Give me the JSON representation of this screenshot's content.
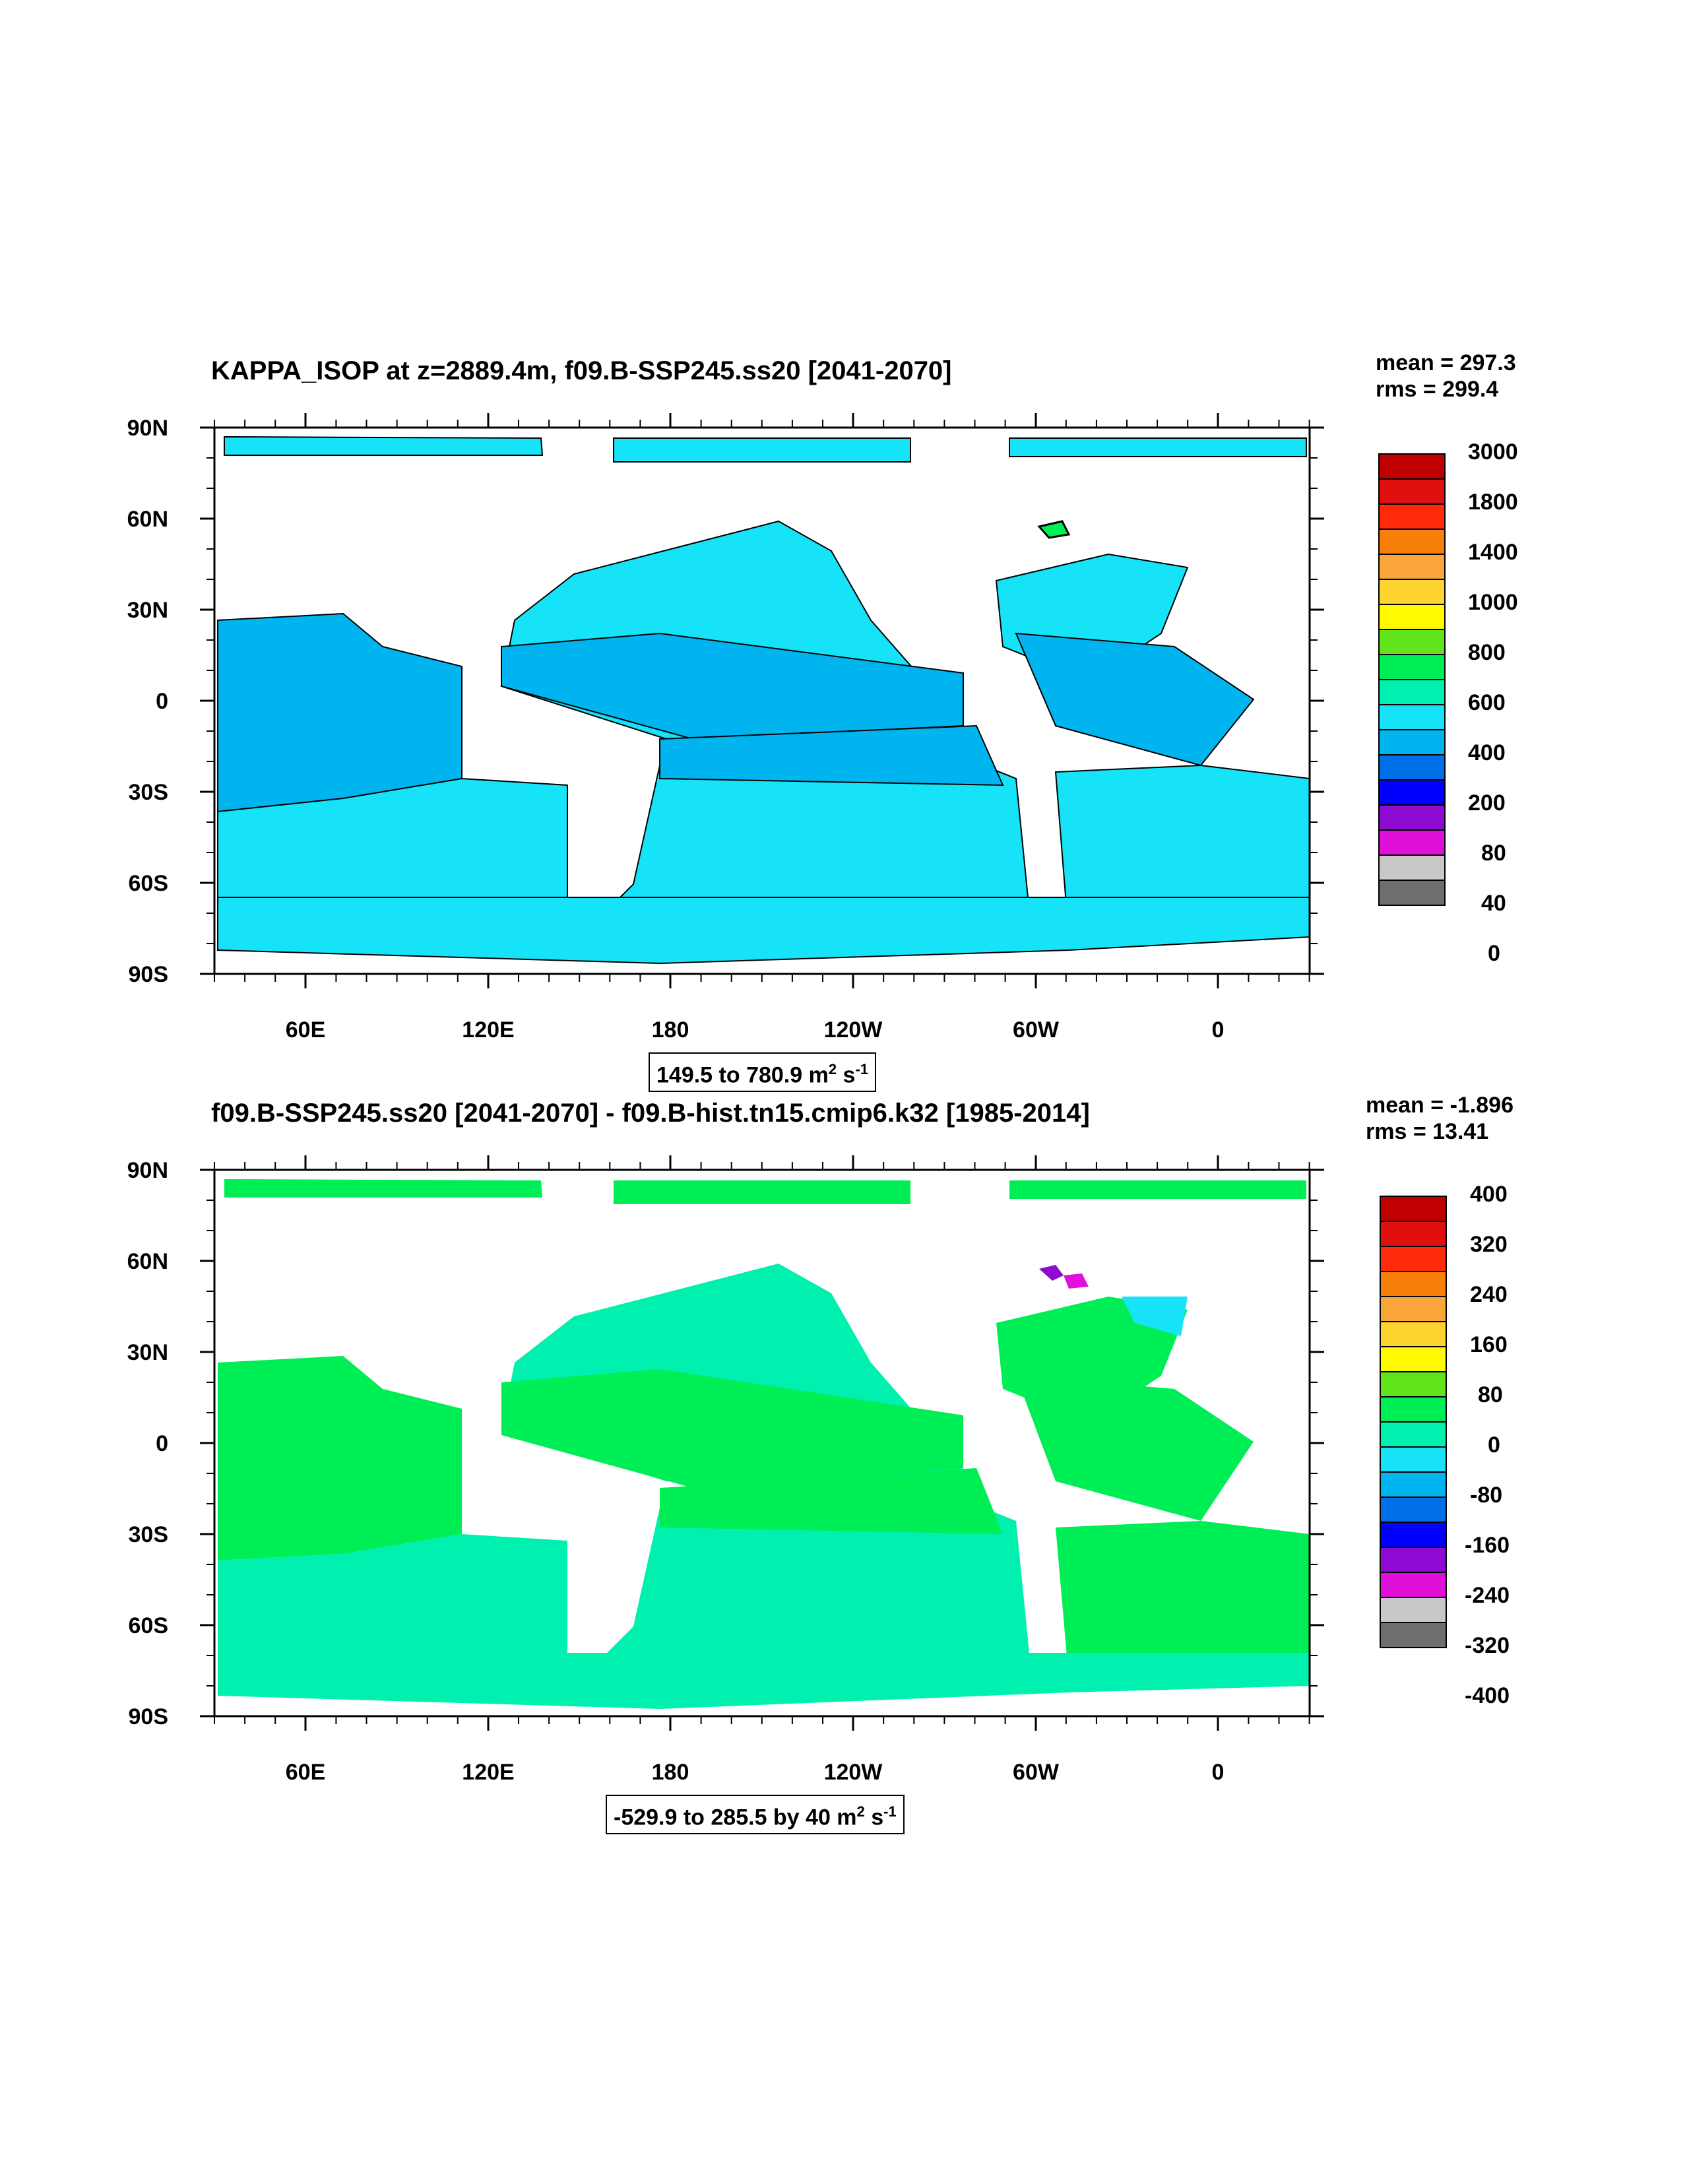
{
  "panels": [
    {
      "title": "KAPPA_ISOP at z=2889.4m, f09.B-SSP245.ss20 [2041-2070]",
      "stats": {
        "mean": "mean = 297.3",
        "rms": "rms = 299.4"
      },
      "range_text": "149.5 to 780.9 m",
      "range_sup1": "2",
      "range_mid": " s",
      "range_sup2": "-1",
      "colorbar_labels": [
        "3000",
        "1800",
        "1400",
        "1000",
        "800",
        "600",
        "400",
        "200",
        "80",
        "40",
        "0"
      ],
      "colors": [
        "#c00000",
        "#e01010",
        "#ff2a0a",
        "#f77f0a",
        "#fba63a",
        "#fdd330",
        "#fffa00",
        "#62e41c",
        "#00ee55",
        "#00f0b0",
        "#16e2f8",
        "#00b4f0",
        "#0070e8",
        "#0000ff",
        "#8e0ad2",
        "#e010d8",
        "#c8c8c8",
        "#6e6e6e"
      ]
    },
    {
      "title": "f09.B-SSP245.ss20 [2041-2070] - f09.B-hist.tn15.cmip6.k32 [1985-2014]",
      "stats": {
        "mean": "mean = -1.896",
        "rms": "rms = 13.41"
      },
      "range_text": "-529.9 to 285.5 by 40 m",
      "range_sup1": "2",
      "range_mid": " s",
      "range_sup2": "-1",
      "colorbar_labels": [
        "400",
        "320",
        "240",
        "160",
        "80",
        "0",
        "-80",
        "-160",
        "-240",
        "-320",
        "-400"
      ],
      "colors": [
        "#c00000",
        "#e01010",
        "#ff2a0a",
        "#f77f0a",
        "#fba63a",
        "#fdd330",
        "#fffa00",
        "#62e41c",
        "#00ee55",
        "#00f0b0",
        "#16e2f8",
        "#00b4f0",
        "#0070e8",
        "#0000ff",
        "#8e0ad2",
        "#e010d8",
        "#c8c8c8",
        "#6e6e6e"
      ]
    }
  ],
  "axes": {
    "lat_labels": [
      "90N",
      "60N",
      "30N",
      "0",
      "30S",
      "60S",
      "90S"
    ],
    "lon_labels": [
      "60E",
      "120E",
      "180",
      "120W",
      "60W",
      "0"
    ]
  }
}
